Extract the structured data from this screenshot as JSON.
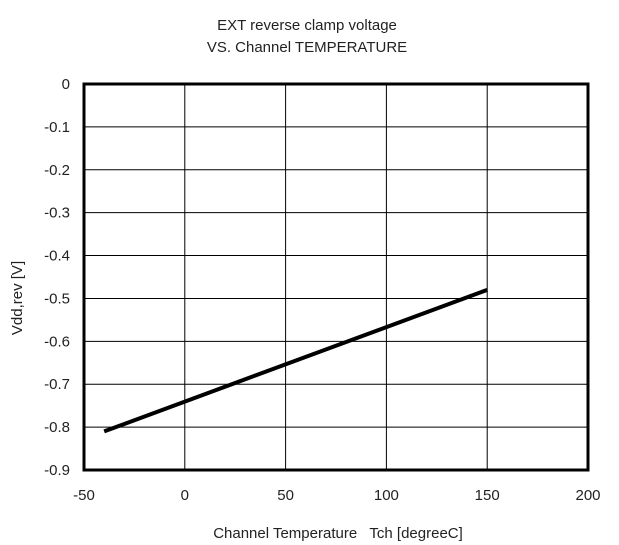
{
  "chart_data": {
    "type": "line",
    "title_lines": [
      "EXT reverse clamp voltage",
      "VS. Channel TEMPERATURE"
    ],
    "xlabel": "Channel Temperature   Tch [degreeC]",
    "ylabel": "Vdd,rev [V]",
    "xlim": [
      -50,
      200
    ],
    "ylim": [
      -0.9,
      0
    ],
    "xticks": [
      -50,
      0,
      50,
      100,
      150,
      200
    ],
    "yticks": [
      0,
      -0.1,
      -0.2,
      -0.3,
      -0.4,
      -0.5,
      -0.6,
      -0.7,
      -0.8,
      -0.9
    ],
    "xtick_labels": [
      "-50",
      "0",
      "50",
      "100",
      "150",
      "200"
    ],
    "ytick_labels": [
      "0",
      "-0.1",
      "-0.2",
      "-0.3",
      "-0.4",
      "-0.5",
      "-0.6",
      "-0.7",
      "-0.8",
      "-0.9"
    ],
    "grid": true,
    "series": [
      {
        "x": [
          -40,
          150
        ],
        "y": [
          -0.81,
          -0.48
        ],
        "color": "#000000"
      }
    ]
  }
}
